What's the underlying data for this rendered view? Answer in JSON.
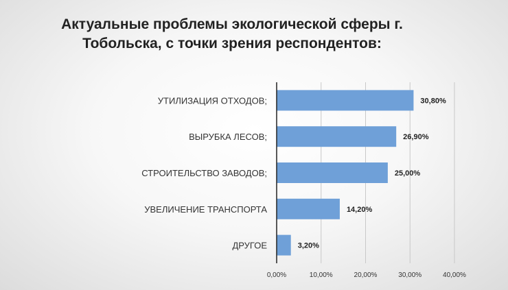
{
  "chart_data": {
    "type": "bar",
    "orientation": "horizontal",
    "title_lines": [
      "Актуальные проблемы экологической сферы г.",
      "Тобольска, с точки зрения респондентов:"
    ],
    "categories": [
      "УТИЛИЗАЦИЯ ОТХОДОВ;",
      "ВЫРУБКА ЛЕСОВ;",
      "СТРОИТЕЛЬСТВО ЗАВОДОВ;",
      "УВЕЛИЧЕНИЕ ТРАНСПОРТА",
      "ДРУГОЕ"
    ],
    "values": [
      30.8,
      26.9,
      25.0,
      14.2,
      3.2
    ],
    "data_labels": [
      "30,80%",
      "26,90%",
      "25,00%",
      "14,20%",
      "3,20%"
    ],
    "xlim": [
      0,
      40
    ],
    "x_ticks": [
      "0,00%",
      "10,00%",
      "20,00%",
      "30,00%",
      "40,00%"
    ],
    "grid": true,
    "colors": {
      "bar": "#6fa0d8",
      "grid": "#c8c8c8",
      "axis": "#222222"
    }
  }
}
